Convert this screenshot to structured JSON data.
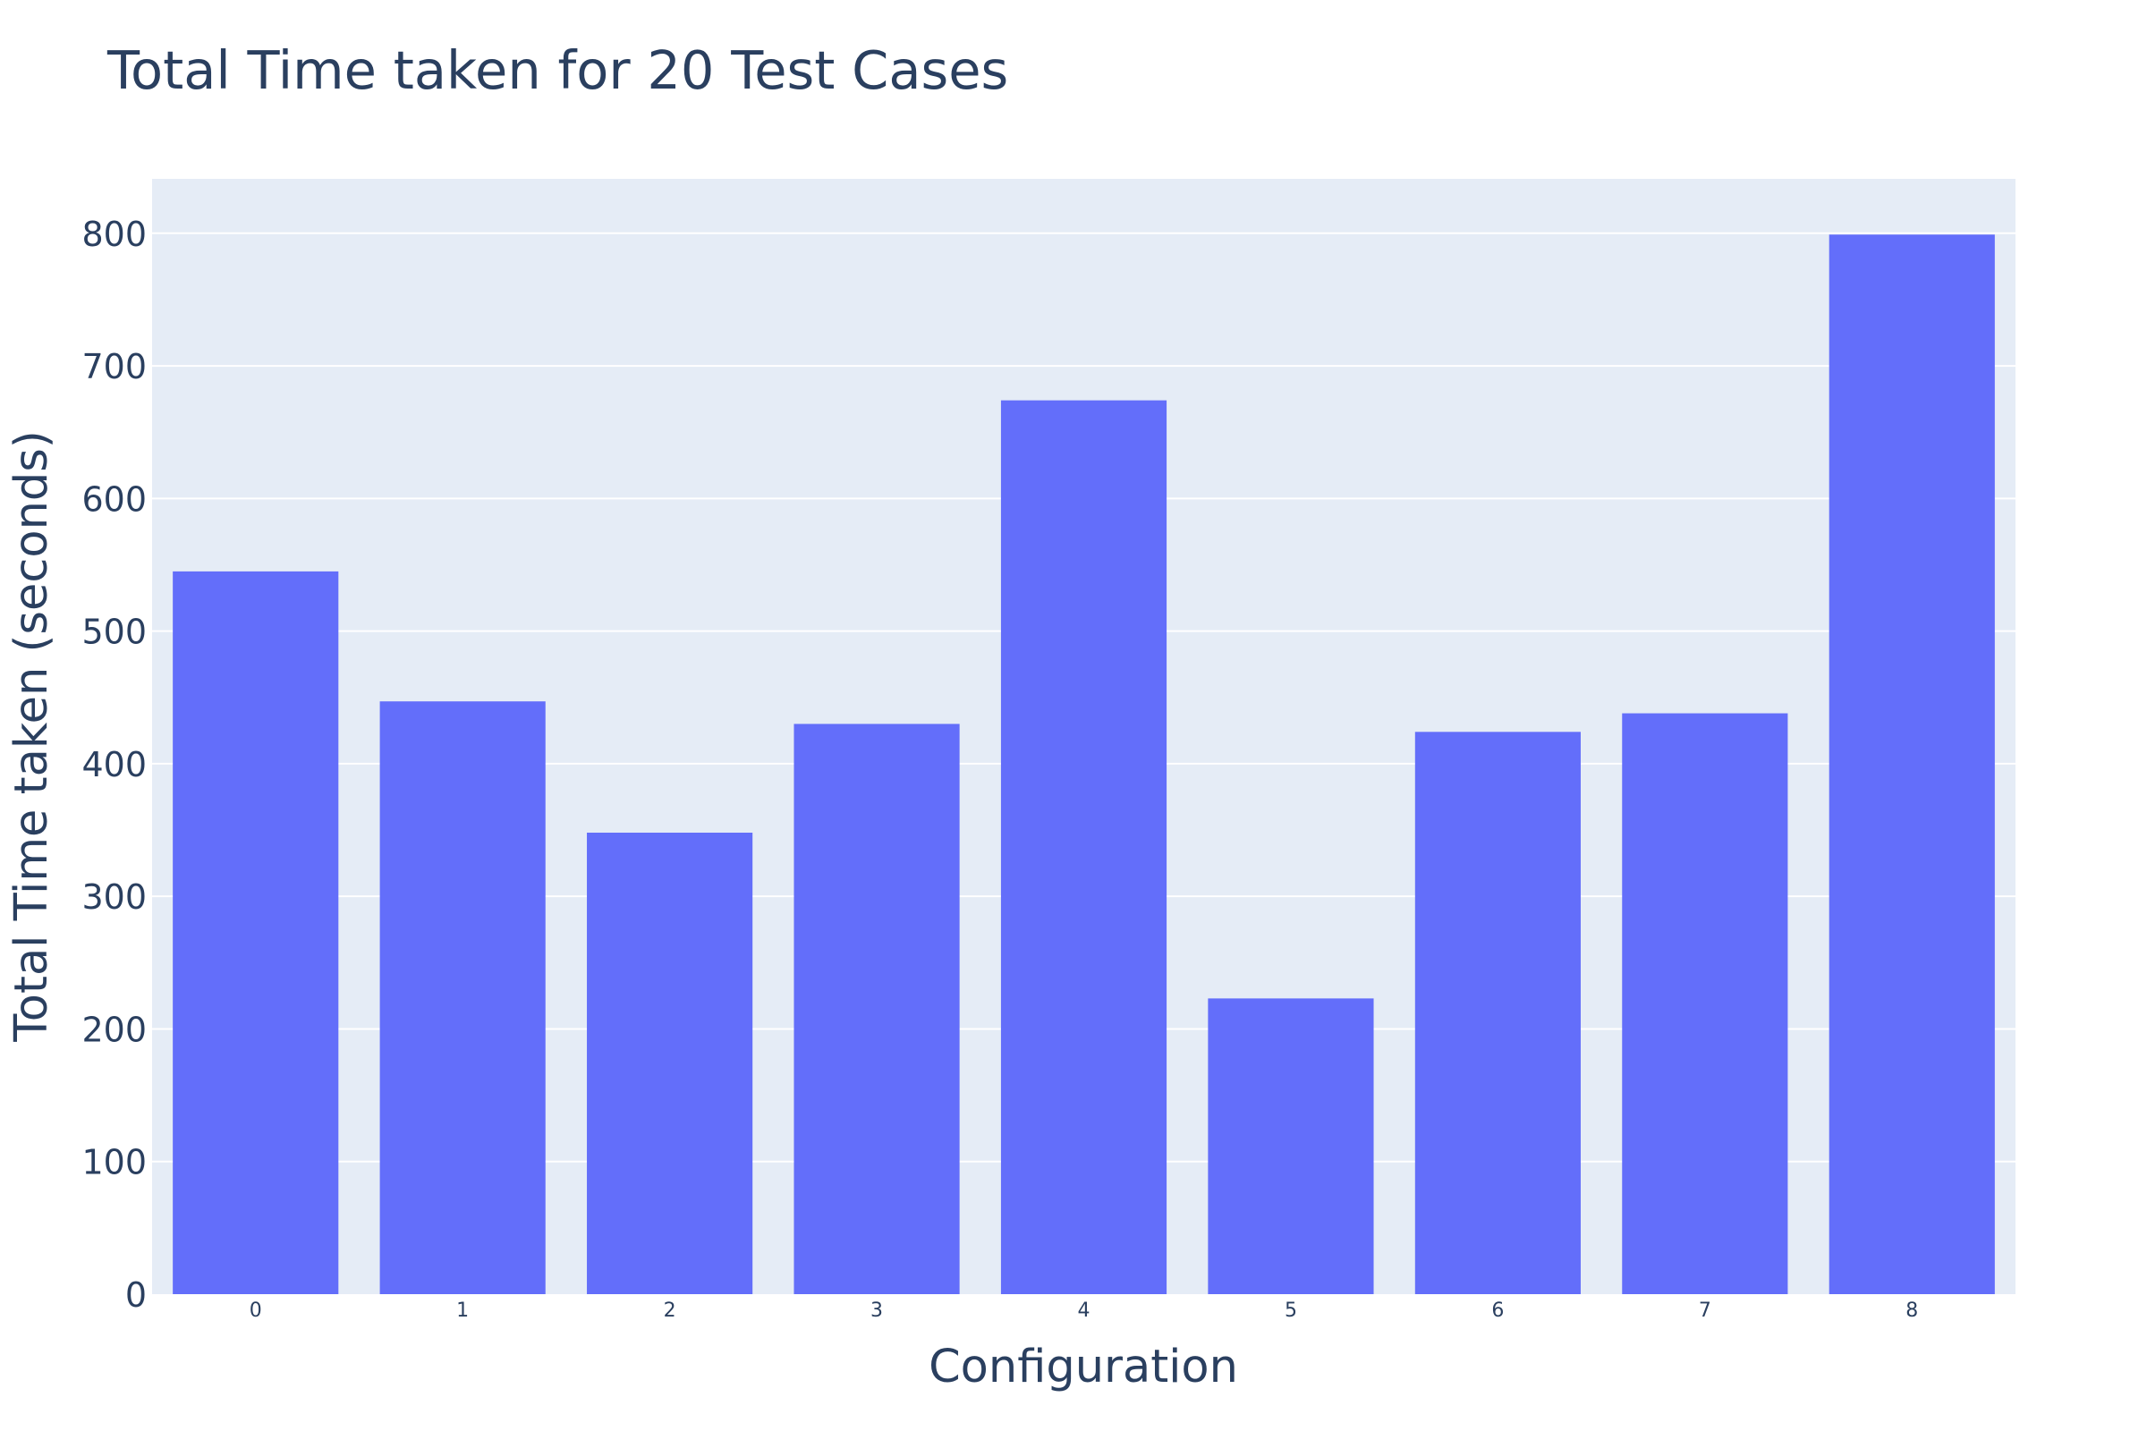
{
  "chart_data": {
    "type": "bar",
    "title": "Total Time taken for 20 Test Cases",
    "xlabel": "Configuration",
    "ylabel": "Total Time taken (seconds)",
    "categories": [
      "0",
      "1",
      "2",
      "3",
      "4",
      "5",
      "6",
      "7",
      "8"
    ],
    "values": [
      545,
      447,
      348,
      430,
      674,
      223,
      424,
      438,
      799
    ],
    "ylim": [
      0,
      841
    ],
    "yticks": [
      0,
      100,
      200,
      300,
      400,
      500,
      600,
      700,
      800
    ],
    "grid": true,
    "legend": "none"
  },
  "colors": {
    "bar": "#636efa",
    "plot_bg": "#e5ecf6",
    "grid": "#ffffff",
    "text": "#2a3f5f"
  }
}
